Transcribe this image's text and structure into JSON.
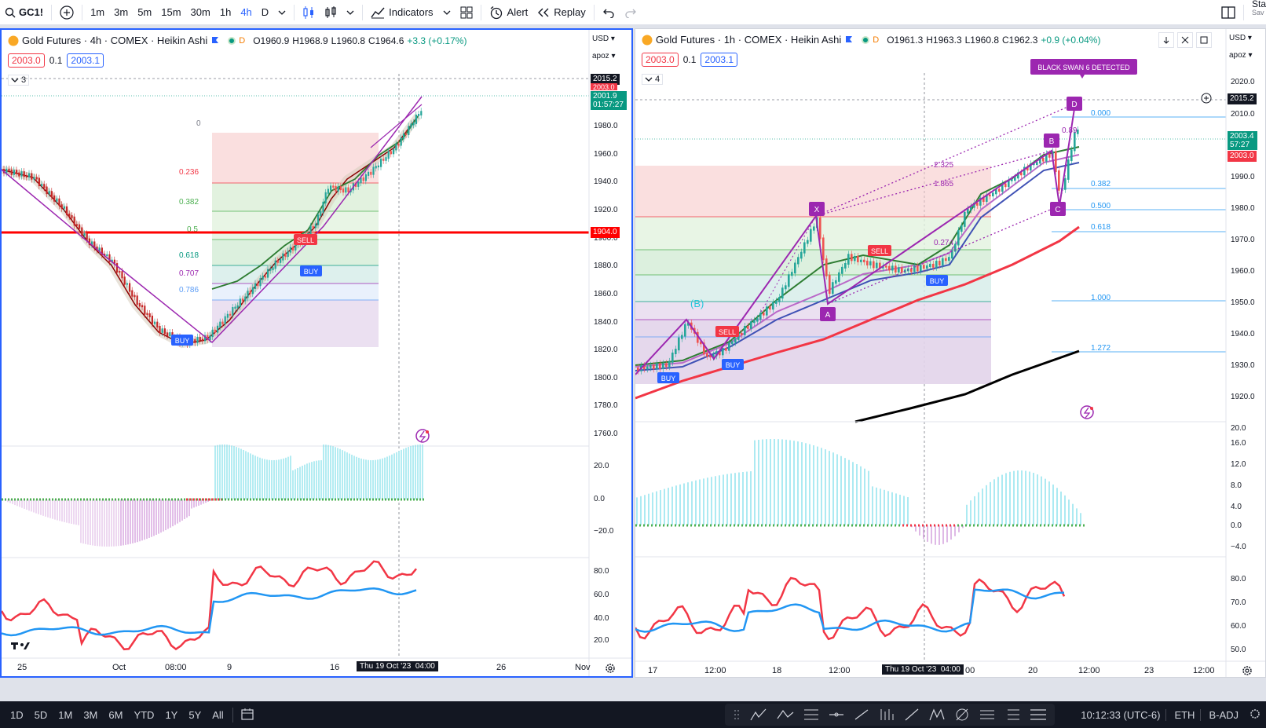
{
  "toolbar": {
    "symbol": "GC1!",
    "intervals": [
      "1m",
      "3m",
      "5m",
      "15m",
      "30m",
      "1h",
      "4h",
      "D"
    ],
    "active_interval": "4h",
    "indicators_label": "Indicators",
    "alert_label": "Alert",
    "replay_label": "Replay",
    "save_label": "Sta",
    "save_sub": "Sav"
  },
  "left": {
    "title": "Gold Futures · 4h · COMEX · Heikin Ashi",
    "open": "O1960.9",
    "high": "H1968.9",
    "low": "L1960.8",
    "close": "C1964.6",
    "change": "+3.3 (+0.17%)",
    "sell_price": "2003.0",
    "spread": "0.1",
    "buy_price": "2003.1",
    "collapse_count": "3",
    "currency": "USD",
    "scale": "apoz",
    "price_axis": [
      "1980.0",
      "1960.0",
      "1940.0",
      "1920.0",
      "1900.0",
      "1880.0",
      "1860.0",
      "1840.0",
      "1820.0",
      "1800.0",
      "1780.0",
      "1760.0"
    ],
    "price_box_top": "2015.2",
    "price_box_red": "2003.0",
    "price_box_green": "2001.9",
    "countdown": "01:57:27",
    "price_box_line": "1904.0",
    "fib_levels": [
      "0",
      "0.236",
      "0.382",
      "0.5",
      "0.618",
      "0.707",
      "0.786"
    ],
    "signals": [
      "SELL",
      "BUY",
      "BUY"
    ],
    "osc_axis": [
      "20.0",
      "0.0",
      "−20.0"
    ],
    "rsi_axis": [
      "80.0",
      "60.0",
      "40.0",
      "20.0"
    ],
    "time_axis": [
      "25",
      "Oct",
      "08:00",
      "9",
      "16",
      "26",
      "Nov"
    ],
    "cursor_time": "Thu 19 Oct '23",
    "cursor_time2": "04:00"
  },
  "right": {
    "title": "Gold Futures · 1h · COMEX · Heikin Ashi",
    "open": "O1961.3",
    "high": "H1963.3",
    "low": "L1960.8",
    "close": "C1962.3",
    "change": "+0.9 (+0.04%)",
    "sell_price": "2003.0",
    "spread": "0.1",
    "buy_price": "2003.1",
    "collapse_count": "4",
    "currency": "USD",
    "scale": "apoz",
    "price_axis": [
      "2020.0",
      "2010.0",
      "1990.0",
      "1980.0",
      "1970.0",
      "1960.0",
      "1950.0",
      "1940.0",
      "1930.0",
      "1920.0"
    ],
    "price_box_top": "2015.2",
    "price_box_green": "2003.4",
    "countdown": "57:27",
    "price_box_red": "2003.0",
    "black_swan": "BLACK SWAN 6 DETECTED",
    "pattern_points": [
      "X",
      "A",
      "B",
      "C",
      "D"
    ],
    "fib_levels": [
      "0.000",
      "0.382",
      "0.500",
      "0.618",
      "1.000",
      "1.272"
    ],
    "ratios": [
      "2.325",
      "1.865",
      "0.274",
      "0.89"
    ],
    "wave_label": "(B)",
    "signals": [
      "SELL",
      "SELL",
      "BUY",
      "BUY",
      "BUY"
    ],
    "osc_axis": [
      "20.0",
      "16.0",
      "12.0",
      "8.0",
      "4.0",
      "0.0",
      "−4.0"
    ],
    "rsi_axis": [
      "80.0",
      "70.0",
      "60.0",
      "50.0"
    ],
    "time_axis": [
      "17",
      "12:00",
      "18",
      "12:00",
      "20",
      "12:00",
      "23",
      "12:00"
    ],
    "cursor_time": "Thu 19 Oct '23",
    "cursor_time2": "04:00",
    "cursor_after": "00"
  },
  "bottom": {
    "ranges": [
      "1D",
      "5D",
      "1M",
      "3M",
      "6M",
      "YTD",
      "1Y",
      "5Y",
      "All"
    ],
    "clock": "10:12:33 (UTC-6)",
    "session": "ETH",
    "adj": "B-ADJ"
  }
}
